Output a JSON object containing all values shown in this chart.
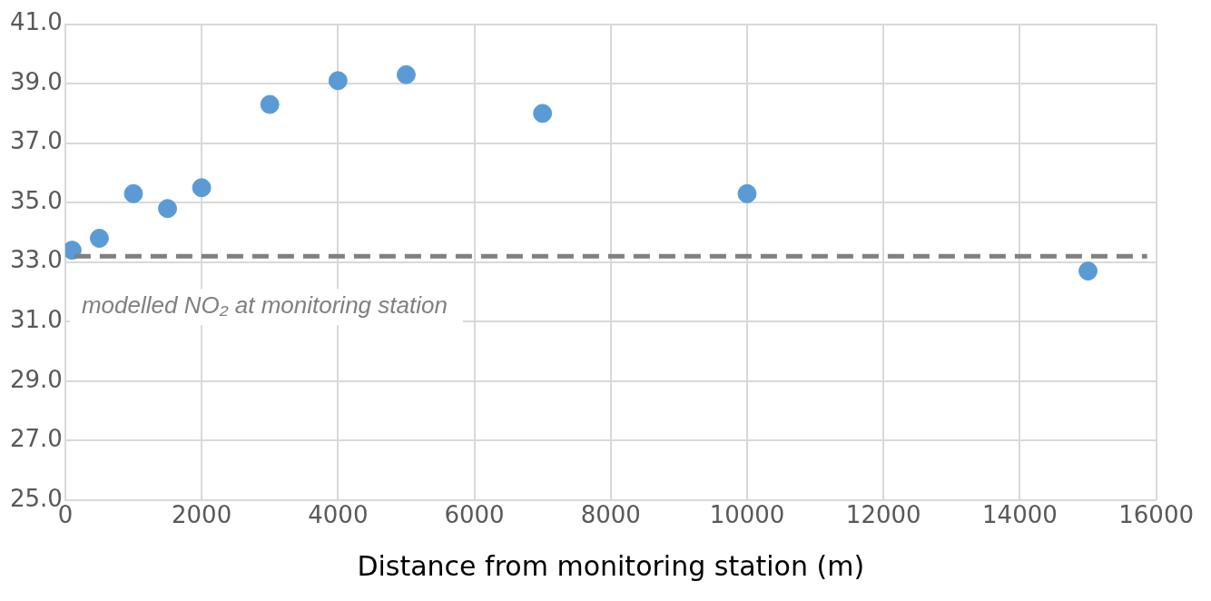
{
  "chart_data": {
    "type": "scatter",
    "xlabel": "Distance from monitoring station (m)",
    "x": [
      100,
      500,
      1000,
      1500,
      2000,
      3000,
      4000,
      5000,
      7000,
      10000,
      15000
    ],
    "series": [
      {
        "color": "#5b9bd5",
        "values": [
          33.4,
          33.8,
          35.3,
          34.8,
          35.5,
          38.3,
          39.1,
          39.3,
          38.0,
          35.3,
          32.7
        ]
      }
    ],
    "xlim": [
      0,
      16000
    ],
    "xticks": [
      0,
      2000,
      4000,
      6000,
      8000,
      10000,
      12000,
      14000,
      16000
    ],
    "ylim": [
      25,
      41
    ],
    "yticks": [
      {
        "value": 25,
        "label": "25.0"
      },
      {
        "value": 27,
        "label": "27.0"
      },
      {
        "value": 29,
        "label": "29.0"
      },
      {
        "value": 31,
        "label": "31.0"
      },
      {
        "value": 33,
        "label": "33.0"
      },
      {
        "value": 35,
        "label": "35.0"
      },
      {
        "value": 37,
        "label": "37.0"
      },
      {
        "value": 39,
        "label": "39.0"
      },
      {
        "value": 41,
        "label": "41.0"
      }
    ],
    "ref_lines": [
      {
        "axis": "y",
        "value": 33.2,
        "label": "modelled NO₂ at monitoring station",
        "color": "#808080",
        "line_style": "dashed"
      }
    ],
    "grid": true,
    "legend": false,
    "marker": "circle"
  }
}
